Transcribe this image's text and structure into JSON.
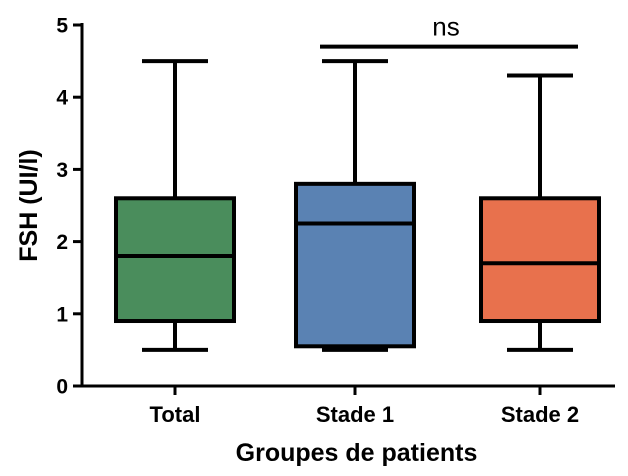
{
  "chart_data": {
    "type": "box",
    "xlabel": "Groupes de patients",
    "ylabel": "FSH (UI/l)",
    "ylim": [
      0,
      5
    ],
    "yticks": [
      0,
      1,
      2,
      3,
      4,
      5
    ],
    "grid": false,
    "categories": [
      "Total",
      "Stade 1",
      "Stade 2"
    ],
    "series": [
      {
        "category": "Total",
        "min": 0.5,
        "q1": 0.9,
        "median": 1.8,
        "q3": 2.6,
        "max": 4.5,
        "color": "#4a8d5c"
      },
      {
        "category": "Stade 1",
        "min": 0.5,
        "q1": 0.55,
        "median": 2.25,
        "q3": 2.8,
        "max": 4.5,
        "color": "#5a82b3"
      },
      {
        "category": "Stade 2",
        "min": 0.5,
        "q1": 0.9,
        "median": 1.7,
        "q3": 2.6,
        "max": 4.3,
        "color": "#e8714d"
      }
    ],
    "annotations": [
      {
        "text": "ns",
        "from": "Stade 1",
        "to": "Stade 2",
        "y": 4.7
      }
    ]
  }
}
